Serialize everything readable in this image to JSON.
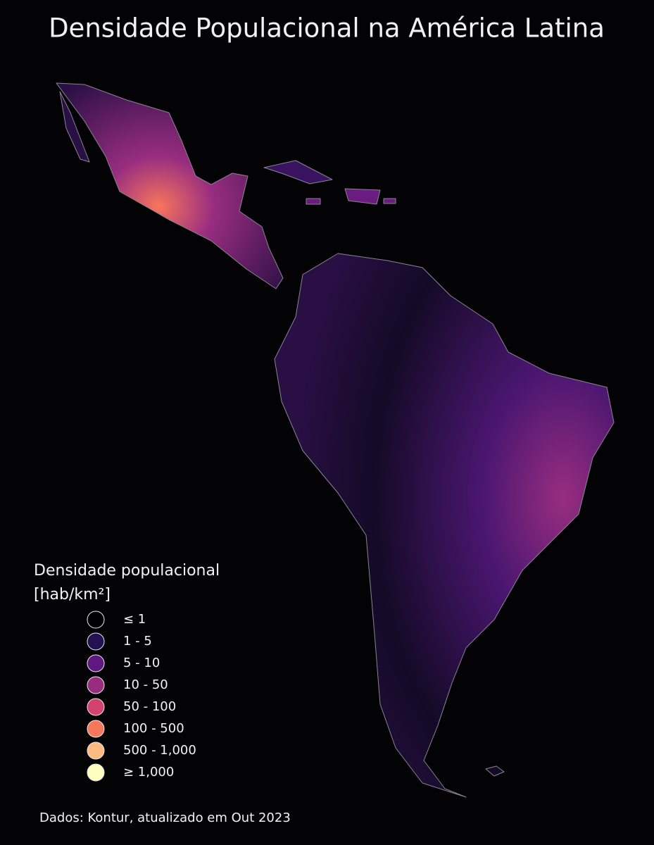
{
  "header": {
    "title": "Densidade Populacional na América Latina"
  },
  "legend": {
    "title": "Densidade populacional",
    "unit": "[hab/km²]",
    "items": [
      {
        "label": "≤ 1",
        "color": "#000004"
      },
      {
        "label": "1 - 5",
        "color": "#231151"
      },
      {
        "label": "5 - 10",
        "color": "#5f187f"
      },
      {
        "label": "10 - 50",
        "color": "#982d80"
      },
      {
        "label": "50 - 100",
        "color": "#d3436e"
      },
      {
        "label": "100 - 500",
        "color": "#f8765c"
      },
      {
        "label": "500 - 1,000",
        "color": "#febb81"
      },
      {
        "label": "≥ 1,000",
        "color": "#fcfdbf"
      }
    ]
  },
  "footer": {
    "source": "Dados: Kontur, atualizado em Out 2023"
  }
}
